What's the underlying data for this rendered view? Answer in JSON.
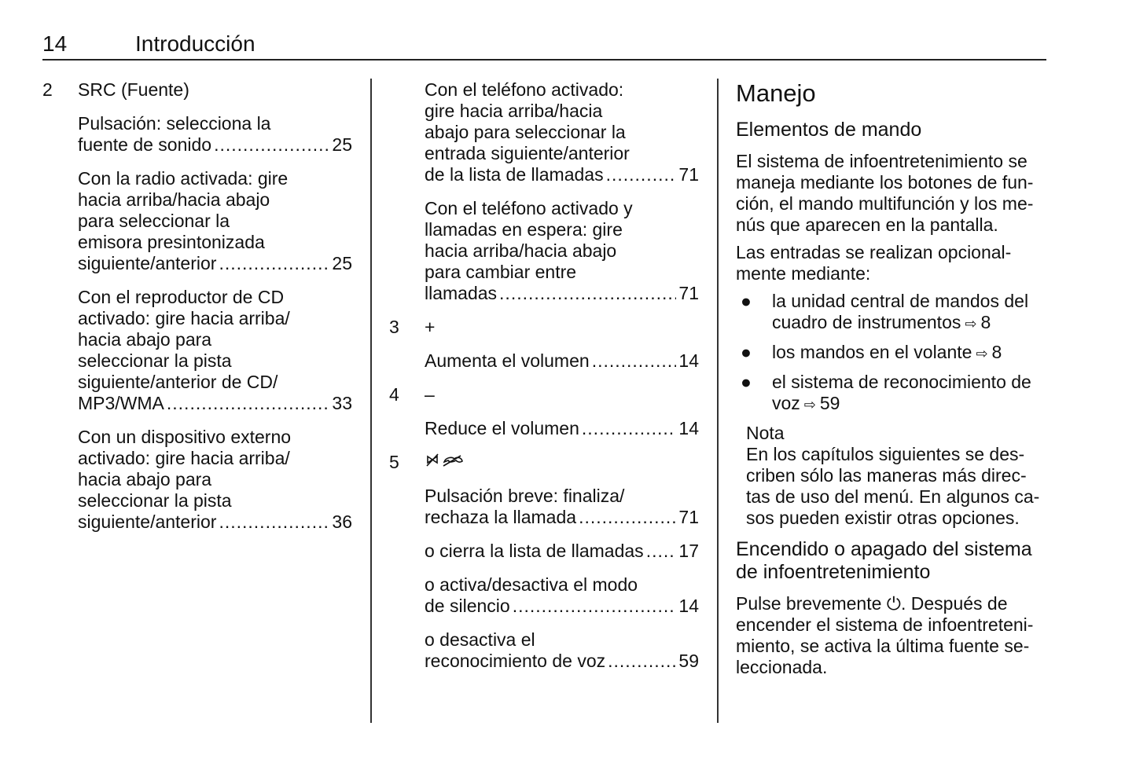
{
  "header": {
    "page_number": "14",
    "title": "Introducción"
  },
  "column1": [
    {
      "type": "num",
      "n": "2",
      "text": "SRC (Fuente)"
    },
    {
      "type": "entry",
      "lines": [
        "Pulsación: selecciona la",
        "fuente de sonido"
      ],
      "page": "25"
    },
    {
      "type": "entry",
      "lines": [
        "Con la radio activada: gire",
        "hacia arriba/hacia abajo",
        "para seleccionar la",
        "emisora presintonizada",
        "siguiente/anterior"
      ],
      "page": "25"
    },
    {
      "type": "entry",
      "lines": [
        "Con el reproductor de CD",
        "activado: gire hacia arriba/",
        "hacia abajo para",
        "seleccionar la pista",
        "siguiente/anterior de CD/",
        "MP3/WMA"
      ],
      "page": "33"
    },
    {
      "type": "entry",
      "lines": [
        "Con un dispositivo externo",
        "activado: gire hacia arriba/",
        "hacia abajo para",
        "seleccionar la pista",
        "siguiente/anterior"
      ],
      "page": "36"
    }
  ],
  "column2": [
    {
      "type": "entry",
      "lines": [
        "Con el teléfono activado:",
        "gire hacia arriba/hacia",
        "abajo para seleccionar la",
        "entrada siguiente/anterior",
        "de la lista de llamadas"
      ],
      "page": "71"
    },
    {
      "type": "entry",
      "lines": [
        "Con el teléfono activado y",
        "llamadas en espera: gire",
        "hacia arriba/hacia abajo",
        "para cambiar entre",
        "llamadas"
      ],
      "page": "71"
    },
    {
      "type": "num",
      "n": "3",
      "text": "+"
    },
    {
      "type": "entry",
      "lines": [
        "Aumenta el volumen"
      ],
      "page": "14"
    },
    {
      "type": "num",
      "n": "4",
      "text": "–"
    },
    {
      "type": "entry",
      "lines": [
        "Reduce el volumen"
      ],
      "page": "14"
    },
    {
      "type": "num",
      "n": "5",
      "text": "",
      "icon": "mute-hangup-icon"
    },
    {
      "type": "entry",
      "lines": [
        "Pulsación breve: finaliza/",
        "rechaza la llamada"
      ],
      "page": "71"
    },
    {
      "type": "entry",
      "lines": [
        "o cierra la lista de llamadas"
      ],
      "page": "17"
    },
    {
      "type": "entry",
      "lines": [
        "o activa/desactiva el modo",
        "de silencio"
      ],
      "page": "14"
    },
    {
      "type": "entry",
      "lines": [
        "o desactiva el",
        "reconocimiento de voz"
      ],
      "page": "59"
    }
  ],
  "column3": [
    {
      "type": "h1",
      "lines": [
        "Manejo"
      ]
    },
    {
      "type": "h2",
      "lines": [
        "Elementos de mando"
      ]
    },
    {
      "type": "para",
      "lines": [
        "El sistema de infoentretenimiento se",
        "maneja mediante los botones de fun-",
        "ción, el mando multifunción y los me-",
        "nús que aparecen en la pantalla."
      ]
    },
    {
      "type": "para",
      "lines": [
        "Las entradas se realizan opcional-",
        "mente mediante:"
      ]
    },
    {
      "type": "bullet",
      "lines": [
        "la unidad central de mandos del",
        "cuadro de instrumentos"
      ],
      "ref": "8"
    },
    {
      "type": "bullet",
      "lines": [
        "los mandos en el volante"
      ],
      "ref": "8"
    },
    {
      "type": "bullet",
      "lines": [
        "el sistema de reconocimiento de",
        "voz"
      ],
      "ref": "59"
    },
    {
      "type": "note",
      "lines": [
        "Nota",
        "En los capítulos siguientes se des-",
        "criben sólo las maneras más direc-",
        "tas de uso del menú. En algunos ca-",
        "sos pueden existir otras opciones."
      ]
    },
    {
      "type": "h2",
      "lines": [
        "Encendido o apagado del sistema",
        "de infoentretenimiento"
      ]
    },
    {
      "type": "para",
      "lines": [
        "Pulse brevemente ⏻. Después de",
        "encender el sistema de infoentreteni-",
        "miento, se activa la última fuente se-",
        "leccionada."
      ]
    }
  ],
  "icons": {
    "reference": "arrow-reference-icon",
    "bullet": "bullet-dot",
    "power": "power-icon"
  }
}
